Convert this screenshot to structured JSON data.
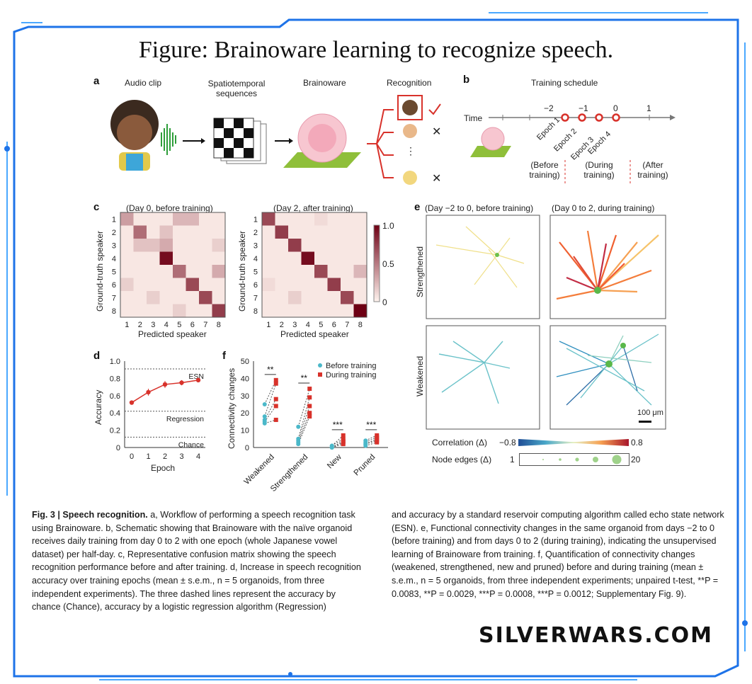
{
  "page": {
    "title": "Figure: Brainoware learning to recognize speech.",
    "watermark": "SILVERWARS.COM"
  },
  "panel_a": {
    "label": "a",
    "steps": [
      "Audio clip",
      "Spatiotemporal sequences",
      "Brainoware",
      "Recognition"
    ],
    "ellipsis": "⋮"
  },
  "panel_b": {
    "label": "b",
    "title": "Training schedule",
    "axis_label": "Time",
    "ticks": [
      "−2",
      "−1",
      "0",
      "1"
    ],
    "epochs": [
      "Epoch 1",
      "Epoch 2",
      "Epoch 3",
      "Epoch 4"
    ],
    "phases": [
      "(Before training)",
      "(During training)",
      "(After training)"
    ]
  },
  "panel_c": {
    "label": "c",
    "xlabel": "Predicted speaker",
    "ylabel": "Ground-truth speaker",
    "colorbar_ticks": [
      "1.0",
      "0.5",
      "0"
    ]
  },
  "panel_e": {
    "label": "e",
    "col_titles": [
      "(Day −2 to 0, before training)",
      "(Day 0 to 2, during training)"
    ],
    "row_labels": [
      "Strengthened",
      "Weakened"
    ],
    "scale_bar": "100 μm",
    "correlation_label": "Correlation (Δ)",
    "correlation_min": "−0.8",
    "correlation_max": "0.8",
    "node_edges_label": "Node edges (Δ)",
    "node_min": "1",
    "node_max": "20"
  },
  "panel_f": {
    "label": "f",
    "ylabel": "Connectivity changes",
    "legend": [
      "Before training",
      "During training"
    ],
    "yticks": [
      "0",
      "10",
      "20",
      "30",
      "40",
      "50"
    ],
    "significance": [
      "**",
      "**",
      "***",
      "***"
    ]
  },
  "caption": {
    "fig_label": "Fig. 3 | Speech recognition.",
    "left_text": "a, Workflow of performing a speech recognition task using Brainoware. b, Schematic showing that Brainoware with the naïve organoid receives daily training from day 0 to 2 with one epoch (whole Japanese vowel dataset) per half-day. c, Representative confusion matrix showing the speech recognition performance before and after training. d, Increase in speech recognition accuracy over training epochs (mean ± s.e.m., n = 5 organoids, from three independent experiments). The three dashed lines represent the accuracy by chance (Chance), accuracy by a logistic regression algorithm (Regression)",
    "right_text": "and accuracy by a standard reservoir computing algorithm called echo state network (ESN). e, Functional connectivity changes in the same organoid from days −2 to 0 (before training) and from days 0 to 2 (during training), indicating the unsupervised learning of Brainoware from training. f, Quantification of connectivity changes (weakened, strengthened, new and pruned) before and during training (mean ± s.e.m., n = 5 organoids, from three independent experiments; unpaired t-test, **P = 0.0083, **P = 0.0029, ***P = 0.0008, ***P = 0.0012; Supplementary Fig. 9)."
  },
  "chart_data": [
    {
      "type": "heatmap",
      "title": "(Day 0, before training)",
      "xlabel": "Predicted speaker",
      "ylabel": "Ground-truth speaker",
      "categories": [
        "1",
        "2",
        "3",
        "4",
        "5",
        "6",
        "7",
        "8"
      ],
      "values": [
        [
          0.35,
          0.05,
          0.05,
          0.05,
          0.25,
          0.25,
          0.05,
          0.05
        ],
        [
          0.05,
          0.55,
          0.05,
          0.2,
          0.05,
          0.05,
          0.05,
          0.05
        ],
        [
          0.05,
          0.2,
          0.2,
          0.3,
          0.05,
          0.05,
          0.05,
          0.15
        ],
        [
          0.05,
          0.05,
          0.05,
          0.95,
          0.05,
          0.05,
          0.05,
          0.05
        ],
        [
          0.05,
          0.05,
          0.05,
          0.05,
          0.55,
          0.05,
          0.05,
          0.3
        ],
        [
          0.15,
          0.05,
          0.05,
          0.05,
          0.05,
          0.7,
          0.05,
          0.05
        ],
        [
          0.05,
          0.05,
          0.15,
          0.05,
          0.05,
          0.05,
          0.7,
          0.05
        ],
        [
          0.05,
          0.05,
          0.05,
          0.05,
          0.15,
          0.05,
          0.05,
          0.75
        ]
      ],
      "zlim": [
        0,
        1
      ]
    },
    {
      "type": "heatmap",
      "title": "(Day 2, after training)",
      "xlabel": "Predicted speaker",
      "ylabel": "Ground-truth speaker",
      "categories": [
        "1",
        "2",
        "3",
        "4",
        "5",
        "6",
        "7",
        "8"
      ],
      "values": [
        [
          0.7,
          0.05,
          0.05,
          0.05,
          0.1,
          0.05,
          0.05,
          0.05
        ],
        [
          0.05,
          0.75,
          0.05,
          0.05,
          0.05,
          0.05,
          0.05,
          0.05
        ],
        [
          0.05,
          0.05,
          0.75,
          0.05,
          0.05,
          0.05,
          0.05,
          0.05
        ],
        [
          0.05,
          0.05,
          0.05,
          0.95,
          0.05,
          0.05,
          0.05,
          0.05
        ],
        [
          0.05,
          0.05,
          0.05,
          0.05,
          0.7,
          0.05,
          0.05,
          0.25
        ],
        [
          0.1,
          0.05,
          0.05,
          0.05,
          0.05,
          0.75,
          0.05,
          0.05
        ],
        [
          0.05,
          0.05,
          0.15,
          0.05,
          0.05,
          0.05,
          0.7,
          0.05
        ],
        [
          0.05,
          0.05,
          0.05,
          0.05,
          0.05,
          0.05,
          0.05,
          1.0
        ]
      ],
      "colorbar_label": "",
      "zlim": [
        0,
        1
      ]
    },
    {
      "type": "line",
      "label": "d",
      "title": "",
      "xlabel": "Epoch",
      "ylabel": "Accuracy",
      "x": [
        0,
        1,
        2,
        3,
        4
      ],
      "values": [
        0.52,
        0.64,
        0.73,
        0.75,
        0.78
      ],
      "errors": [
        0.02,
        0.04,
        0.04,
        0.03,
        0.01
      ],
      "xlim": [
        0,
        4
      ],
      "ylim": [
        0,
        1.0
      ],
      "yticks": [
        "0",
        "0.2",
        "0.4",
        "0.6",
        "0.8",
        "1.0"
      ],
      "reference_lines": [
        {
          "name": "ESN",
          "value": 0.91
        },
        {
          "name": "Regression",
          "value": 0.42
        },
        {
          "name": "Chance",
          "value": 0.12
        }
      ]
    },
    {
      "type": "scatter",
      "label": "f",
      "xlabel": "",
      "ylabel": "Connectivity changes",
      "categories": [
        "Weakened",
        "Strengthened",
        "New",
        "Pruned"
      ],
      "ylim": [
        0,
        50
      ],
      "series": [
        {
          "name": "Before training",
          "values": [
            [
              25,
              18,
              16,
              15,
              14
            ],
            [
              12,
              5,
              4,
              3,
              2
            ],
            [
              1,
              1,
              0,
              0,
              0
            ],
            [
              4,
              3,
              2,
              2,
              1
            ]
          ]
        },
        {
          "name": "During training",
          "values": [
            [
              39,
              37,
              28,
              24,
              16
            ],
            [
              34,
              29,
              24,
              20,
              18
            ],
            [
              7,
              5,
              4,
              3,
              2
            ],
            [
              7,
              6,
              5,
              4,
              3
            ]
          ]
        }
      ]
    }
  ]
}
